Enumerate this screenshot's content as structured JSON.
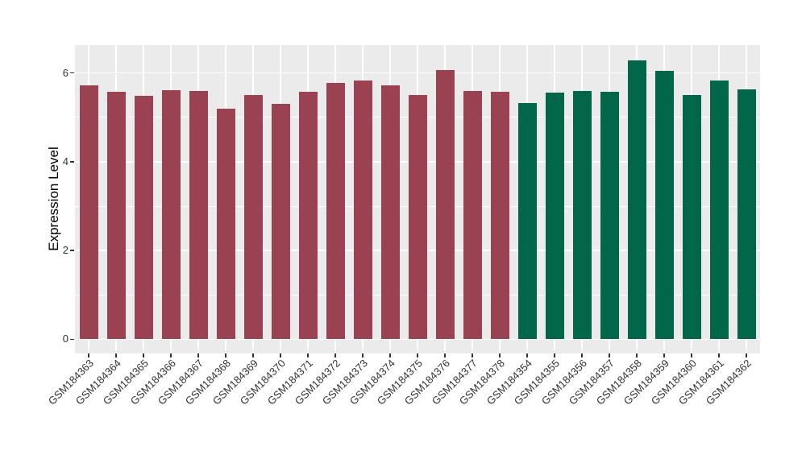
{
  "figure": {
    "background_color": "#ffffff",
    "panel_background_color": "#ebebeb",
    "gridline_color": "#ffffff",
    "axis_text_color": "#333333",
    "axis_title_color": "#000000"
  },
  "chart_data": {
    "type": "bar",
    "title": "",
    "xlabel": "",
    "ylabel": "Expression Level",
    "ylim": [
      0,
      6.3
    ],
    "yticks": [
      0,
      2,
      4,
      6
    ],
    "y_minor_ticks": [
      1,
      3,
      5
    ],
    "grid": "on",
    "legend": "none",
    "categories": [
      "GSM184363",
      "GSM184364",
      "GSM184365",
      "GSM184366",
      "GSM184367",
      "GSM184368",
      "GSM184369",
      "GSM184370",
      "GSM184371",
      "GSM184372",
      "GSM184373",
      "GSM184374",
      "GSM184375",
      "GSM184376",
      "GSM184377",
      "GSM184378",
      "GSM184354",
      "GSM184355",
      "GSM184356",
      "GSM184357",
      "GSM184358",
      "GSM184359",
      "GSM184360",
      "GSM184361",
      "GSM184362"
    ],
    "values": [
      5.72,
      5.58,
      5.48,
      5.62,
      5.6,
      5.2,
      5.51,
      5.31,
      5.57,
      5.77,
      5.84,
      5.72,
      5.51,
      6.06,
      5.6,
      5.58,
      5.33,
      5.56,
      5.6,
      5.57,
      6.29,
      6.05,
      5.51,
      5.84,
      5.64
    ],
    "bar_groups": [
      {
        "color": "#9a4251",
        "from": 0,
        "to": 15
      },
      {
        "color": "#02664a",
        "from": 16,
        "to": 24
      }
    ]
  }
}
